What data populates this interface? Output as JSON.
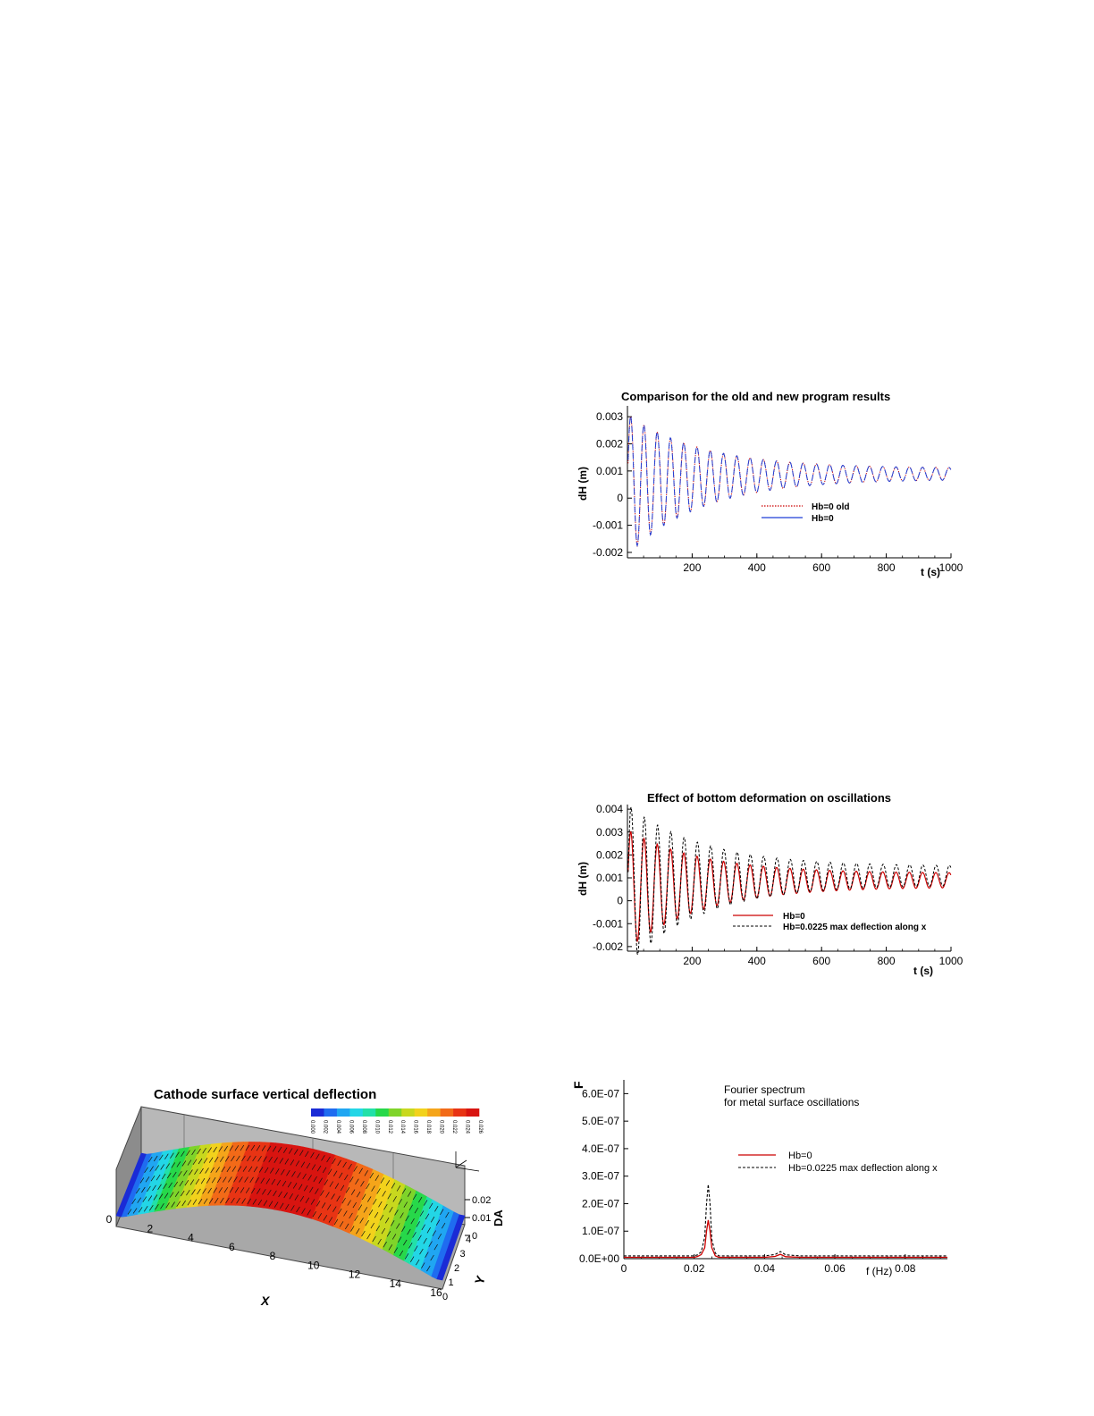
{
  "chart_data": [
    {
      "type": "line",
      "title": "Comparison for the old and new program results",
      "xlabel": "t (s)",
      "ylabel": "dH (m)",
      "xlim": [
        0,
        1000
      ],
      "ylim": [
        -0.0022,
        0.0034
      ],
      "x_ticks": [
        "200",
        "400",
        "600",
        "800",
        "1000"
      ],
      "y_ticks": [
        "0.003",
        "0.002",
        "0.001",
        "0",
        "-0.001",
        "-0.002"
      ],
      "legend_position": "center-right",
      "series": [
        {
          "name": "Hb=0 old",
          "color": "#cc0000",
          "style": "dotted"
        },
        {
          "name": "Hb=0",
          "color": "#1f3fd6",
          "style": "dashed"
        }
      ],
      "signal": {
        "period_s": 41,
        "mean_early": 0.0005,
        "mean_late": 0.0009,
        "amp_initial": 0.0026,
        "amp_final": 0.0002
      }
    },
    {
      "type": "line",
      "title": "Effect of bottom deformation on oscillations",
      "xlabel": "t (s)",
      "ylabel": "dH (m)",
      "xlim": [
        0,
        1000
      ],
      "ylim": [
        -0.0022,
        0.0042
      ],
      "x_ticks": [
        "200",
        "400",
        "600",
        "800",
        "1000"
      ],
      "y_ticks": [
        "0.004",
        "0.003",
        "0.002",
        "0.001",
        "0",
        "-0.001",
        "-0.002"
      ],
      "legend_position": "bottom-right",
      "series": [
        {
          "name": "Hb=0",
          "color": "#cc0000",
          "style": "solid"
        },
        {
          "name": "Hb=0.0225 max deflection along x",
          "color": "#000000",
          "style": "dashed"
        }
      ],
      "signal": {
        "period_s": 41,
        "mean_early": 0.0005,
        "mean_late": 0.0009,
        "amp_initial": 0.0026,
        "amp_final": 0.0003
      }
    },
    {
      "type": "heatmap",
      "title": "Cathode surface vertical deflection",
      "xlabel": "X",
      "ylabel": "Y",
      "zlabel": "DA",
      "x_ticks": [
        "0",
        "2",
        "4",
        "6",
        "8",
        "10",
        "12",
        "14",
        "16"
      ],
      "y_ticks": [
        "0",
        "1",
        "2",
        "3",
        "4"
      ],
      "z_ticks": [
        "0",
        "0.01",
        "0.02"
      ],
      "colorbar_levels": [
        "0.000",
        "0.002",
        "0.004",
        "0.006",
        "0.008",
        "0.010",
        "0.012",
        "0.014",
        "0.016",
        "0.018",
        "0.020",
        "0.022",
        "0.024",
        "0.026"
      ],
      "colorscale": [
        "#1a2bd6",
        "#1f6cf0",
        "#20a6f2",
        "#23d6e6",
        "#22e0a8",
        "#27d84a",
        "#7fd42a",
        "#c8d81e",
        "#f2d21c",
        "#f5a51a",
        "#f26a18",
        "#e83414",
        "#d81410"
      ]
    },
    {
      "type": "line",
      "title": "Fourier spectrum\nfor metal surface oscillations",
      "xlabel": "f (Hz)",
      "ylabel": "F",
      "xlim": [
        0,
        0.092
      ],
      "ylim": [
        0,
        6.5e-07
      ],
      "x_ticks": [
        "0",
        "0.02",
        "0.04",
        "0.06",
        "0.08"
      ],
      "y_ticks": [
        "0.0E+00",
        "1.0E-07",
        "2.0E-07",
        "3.0E-07",
        "4.0E-07",
        "5.0E-07",
        "6.0E-07"
      ],
      "legend_position": "center-right",
      "series": [
        {
          "name": "Hb=0",
          "color": "#cc0000",
          "style": "solid",
          "x": [
            0,
            0.01,
            0.02,
            0.021,
            0.022,
            0.023,
            0.0235,
            0.024,
            0.0245,
            0.025,
            0.026,
            0.027,
            0.03,
            0.04,
            0.043,
            0.0445,
            0.046,
            0.05,
            0.06,
            0.07,
            0.08,
            0.092
          ],
          "y": [
            5e-09,
            5e-09,
            5e-09,
            8e-09,
            1.5e-08,
            4e-08,
            1e-07,
            1.4e-07,
            1e-07,
            4e-08,
            1e-08,
            5e-09,
            5e-09,
            5e-09,
            8e-09,
            1.6e-08,
            7e-09,
            5e-09,
            5e-09,
            5e-09,
            5e-09,
            5e-09
          ]
        },
        {
          "name": "Hb=0.0225 max deflection along x",
          "color": "#000000",
          "style": "dashed",
          "x": [
            0,
            0.01,
            0.02,
            0.021,
            0.022,
            0.023,
            0.0235,
            0.024,
            0.0245,
            0.025,
            0.026,
            0.027,
            0.03,
            0.04,
            0.043,
            0.0445,
            0.046,
            0.05,
            0.06,
            0.07,
            0.08,
            0.092
          ],
          "y": [
            1e-08,
            1e-08,
            1e-08,
            1.4e-08,
            2.5e-08,
            8e-08,
            2e-07,
            2.7e-07,
            2e-07,
            7e-08,
            2e-08,
            1e-08,
            1e-08,
            1e-08,
            1.5e-08,
            2.6e-08,
            1.4e-08,
            1e-08,
            1e-08,
            1e-08,
            1e-08,
            1e-08
          ]
        }
      ]
    }
  ]
}
